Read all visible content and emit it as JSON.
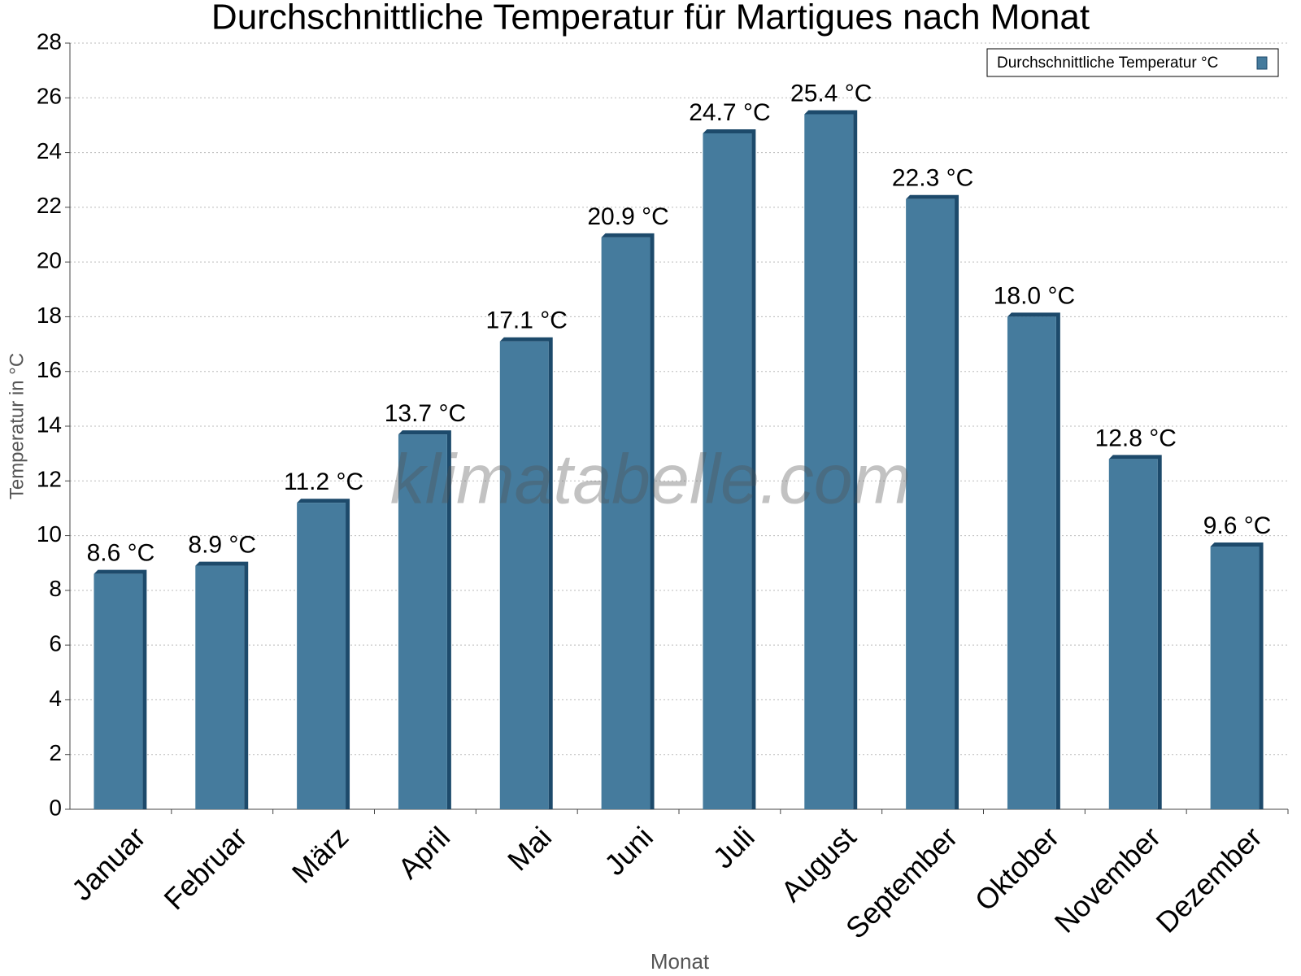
{
  "chart_data": {
    "type": "bar",
    "title": "Durchschnittliche Temperatur für Martigues nach Monat",
    "x_label": "Monat",
    "y_label": "Temperatur in °C",
    "watermark": "klimatabelle.com",
    "categories": [
      "Januar",
      "Februar",
      "März",
      "April",
      "Mai",
      "Juni",
      "Juli",
      "August",
      "September",
      "Oktober",
      "November",
      "Dezember"
    ],
    "series": [
      {
        "name": "Durchschnittliche Temperatur °C",
        "color": "#457b9d",
        "values": [
          8.6,
          8.9,
          11.2,
          13.7,
          17.1,
          20.9,
          24.7,
          25.4,
          22.3,
          18.0,
          12.8,
          9.6
        ],
        "value_labels": [
          "8.6 °C",
          "8.9 °C",
          "11.2 °C",
          "13.7 °C",
          "17.1 °C",
          "20.9 °C",
          "24.7 °C",
          "25.4 °C",
          "22.3 °C",
          "18.0 °C",
          "12.8 °C",
          "9.6 °C"
        ]
      }
    ],
    "ylim": [
      0,
      28
    ],
    "yticks": [
      0,
      2,
      4,
      6,
      8,
      10,
      12,
      14,
      16,
      18,
      20,
      22,
      24,
      26,
      28
    ],
    "grid": true,
    "legend": "top-right"
  }
}
